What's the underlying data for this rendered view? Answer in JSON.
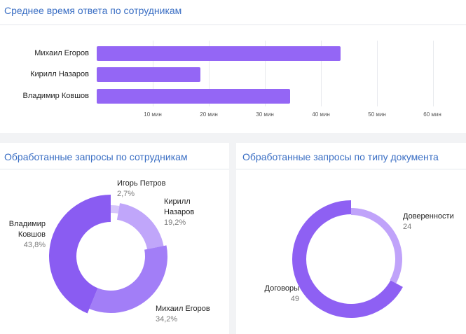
{
  "response_time": {
    "title": "Среднее время ответа по сотрудникам",
    "chart_data": {
      "type": "bar",
      "orientation": "horizontal",
      "categories": [
        "Михаил Егоров",
        "Кирилл Назаров",
        "Владимир Ковшов"
      ],
      "values": [
        43.5,
        18.5,
        34.5
      ],
      "xlim": [
        0,
        65
      ],
      "ticks": [
        10,
        20,
        30,
        40,
        50,
        60
      ],
      "tick_labels": [
        "10 мин",
        "20 мин",
        "30 мин",
        "40 мин",
        "50 мин",
        "60 мин"
      ],
      "grid": true,
      "color": "#9466f5"
    }
  },
  "requests_by_employee": {
    "title": "Обработанные запросы по сотрудникам",
    "chart_data": {
      "type": "pie",
      "variant": "donut",
      "slices": [
        {
          "name": "Игорь Петров",
          "value": 2.7,
          "label": "2,7%",
          "color": "#d6c6fb"
        },
        {
          "name": "Кирилл Назаров",
          "value": 19.2,
          "label": "19,2%",
          "color": "#c0a6fa"
        },
        {
          "name": "Михаил Егоров",
          "value": 34.2,
          "label": "34,2%",
          "color": "#a27ef7"
        },
        {
          "name": "Владимир Ковшов",
          "value": 43.8,
          "label": "43,8%",
          "color": "#8a5cf2"
        }
      ]
    },
    "labels": {
      "igor_name": "Игорь Петров",
      "igor_value": "2,7%",
      "kirill_name": "Кирилл\nНазаров",
      "kirill_value": "19,2%",
      "mikhail_name": "Михаил Егоров",
      "mikhail_value": "34,2%",
      "vladimir_name": "Владимир\nКовшов",
      "vladimir_value": "43,8%"
    }
  },
  "requests_by_doc": {
    "title": "Обработанные запросы по типу документа",
    "chart_data": {
      "type": "pie",
      "variant": "donut",
      "slices": [
        {
          "name": "Доверенности",
          "value": 24,
          "label": "24",
          "color": "#c0a3fa"
        },
        {
          "name": "Договоры",
          "value": 49,
          "label": "49",
          "color": "#8e60f3"
        }
      ]
    },
    "labels": {
      "power_name": "Доверенности",
      "power_value": "24",
      "contracts_name": "Договоры",
      "contracts_value": "49"
    }
  }
}
